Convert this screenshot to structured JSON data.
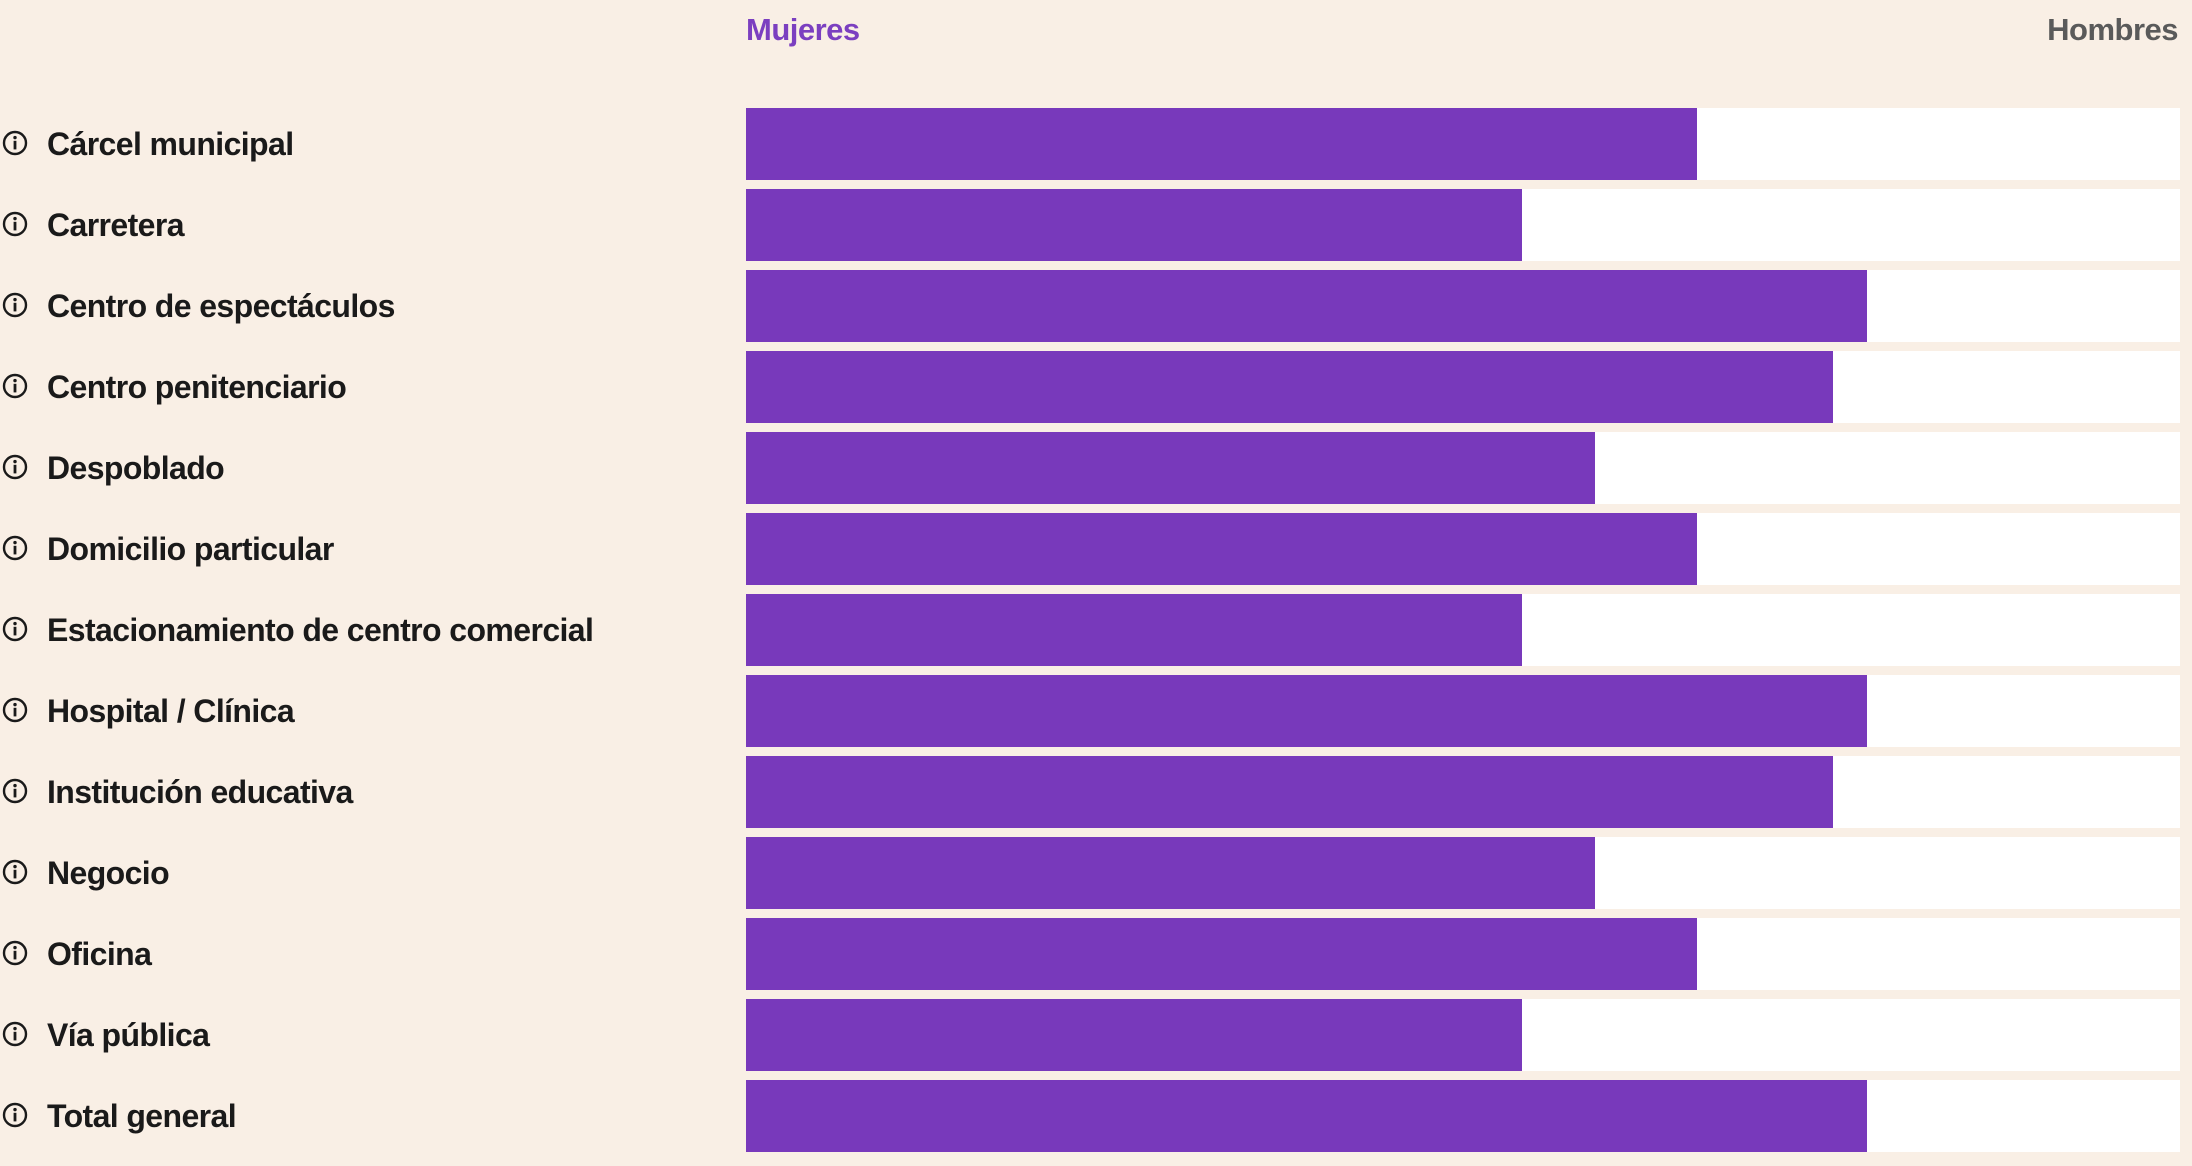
{
  "legend": {
    "women_label": "Mujeres",
    "men_label": "Hombres",
    "women_color": "#7839bb",
    "men_color": "#ffffff",
    "women_text_color": "#7b3fc0",
    "men_text_color": "#5a5a5a"
  },
  "icons": {
    "row_icon": "info-icon"
  },
  "chart_data": {
    "type": "bar",
    "orientation": "horizontal",
    "stacked_100_percent": true,
    "categories": [
      "Cárcel municipal",
      "Carretera",
      "Centro de espectáculos",
      "Centro penitenciario",
      "Despoblado",
      "Domicilio particular",
      "Estacionamiento de centro comercial",
      "Hospital / Clínica",
      "Institución educativa",
      "Negocio",
      "Oficina",
      "Vía pública",
      "Total general"
    ],
    "series": [
      {
        "name": "Mujeres",
        "color": "#7839bb",
        "values": [
          66.3,
          54.1,
          78.2,
          75.8,
          59.2,
          66.3,
          54.1,
          78.2,
          75.8,
          59.2,
          66.3,
          54.1,
          78.2
        ]
      },
      {
        "name": "Hombres",
        "color": "#ffffff",
        "values": [
          33.7,
          45.9,
          21.8,
          24.2,
          40.8,
          33.7,
          45.9,
          21.8,
          24.2,
          40.8,
          33.7,
          45.9,
          21.8
        ]
      }
    ],
    "xlim": [
      0,
      100
    ],
    "legend_position": "top"
  }
}
